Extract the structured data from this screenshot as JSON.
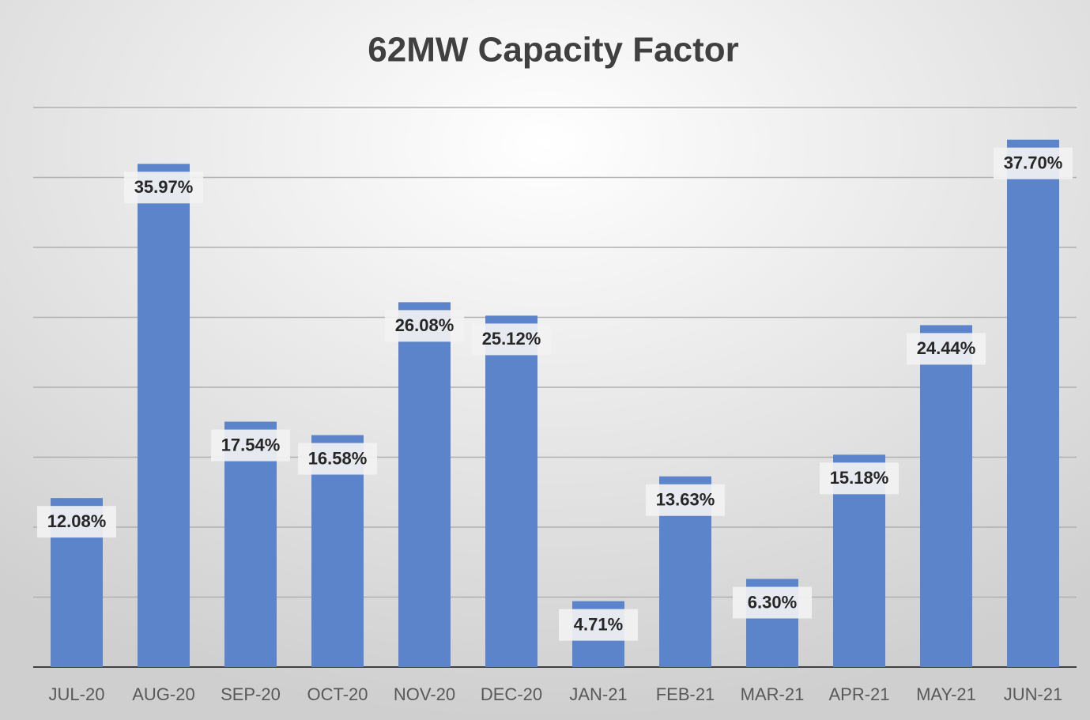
{
  "chart_data": {
    "type": "bar",
    "title": "62MW Capacity Factor",
    "categories": [
      "JUL-20",
      "AUG-20",
      "SEP-20",
      "OCT-20",
      "NOV-20",
      "DEC-20",
      "JAN-21",
      "FEB-21",
      "MAR-21",
      "APR-21",
      "MAY-21",
      "JUN-21"
    ],
    "values": [
      12.08,
      35.97,
      17.54,
      16.58,
      26.08,
      25.12,
      4.71,
      13.63,
      6.3,
      15.18,
      24.44,
      37.7
    ],
    "value_labels": [
      "12.08%",
      "35.97%",
      "17.54%",
      "16.58%",
      "26.08%",
      "25.12%",
      "4.71%",
      "13.63%",
      "6.30%",
      "15.18%",
      "24.44%",
      "37.70%"
    ],
    "color": "#5b84cb",
    "ylim": [
      0,
      40
    ],
    "yticks": [
      0,
      5,
      10,
      15,
      20,
      25,
      30,
      35,
      40
    ],
    "grid": true
  }
}
